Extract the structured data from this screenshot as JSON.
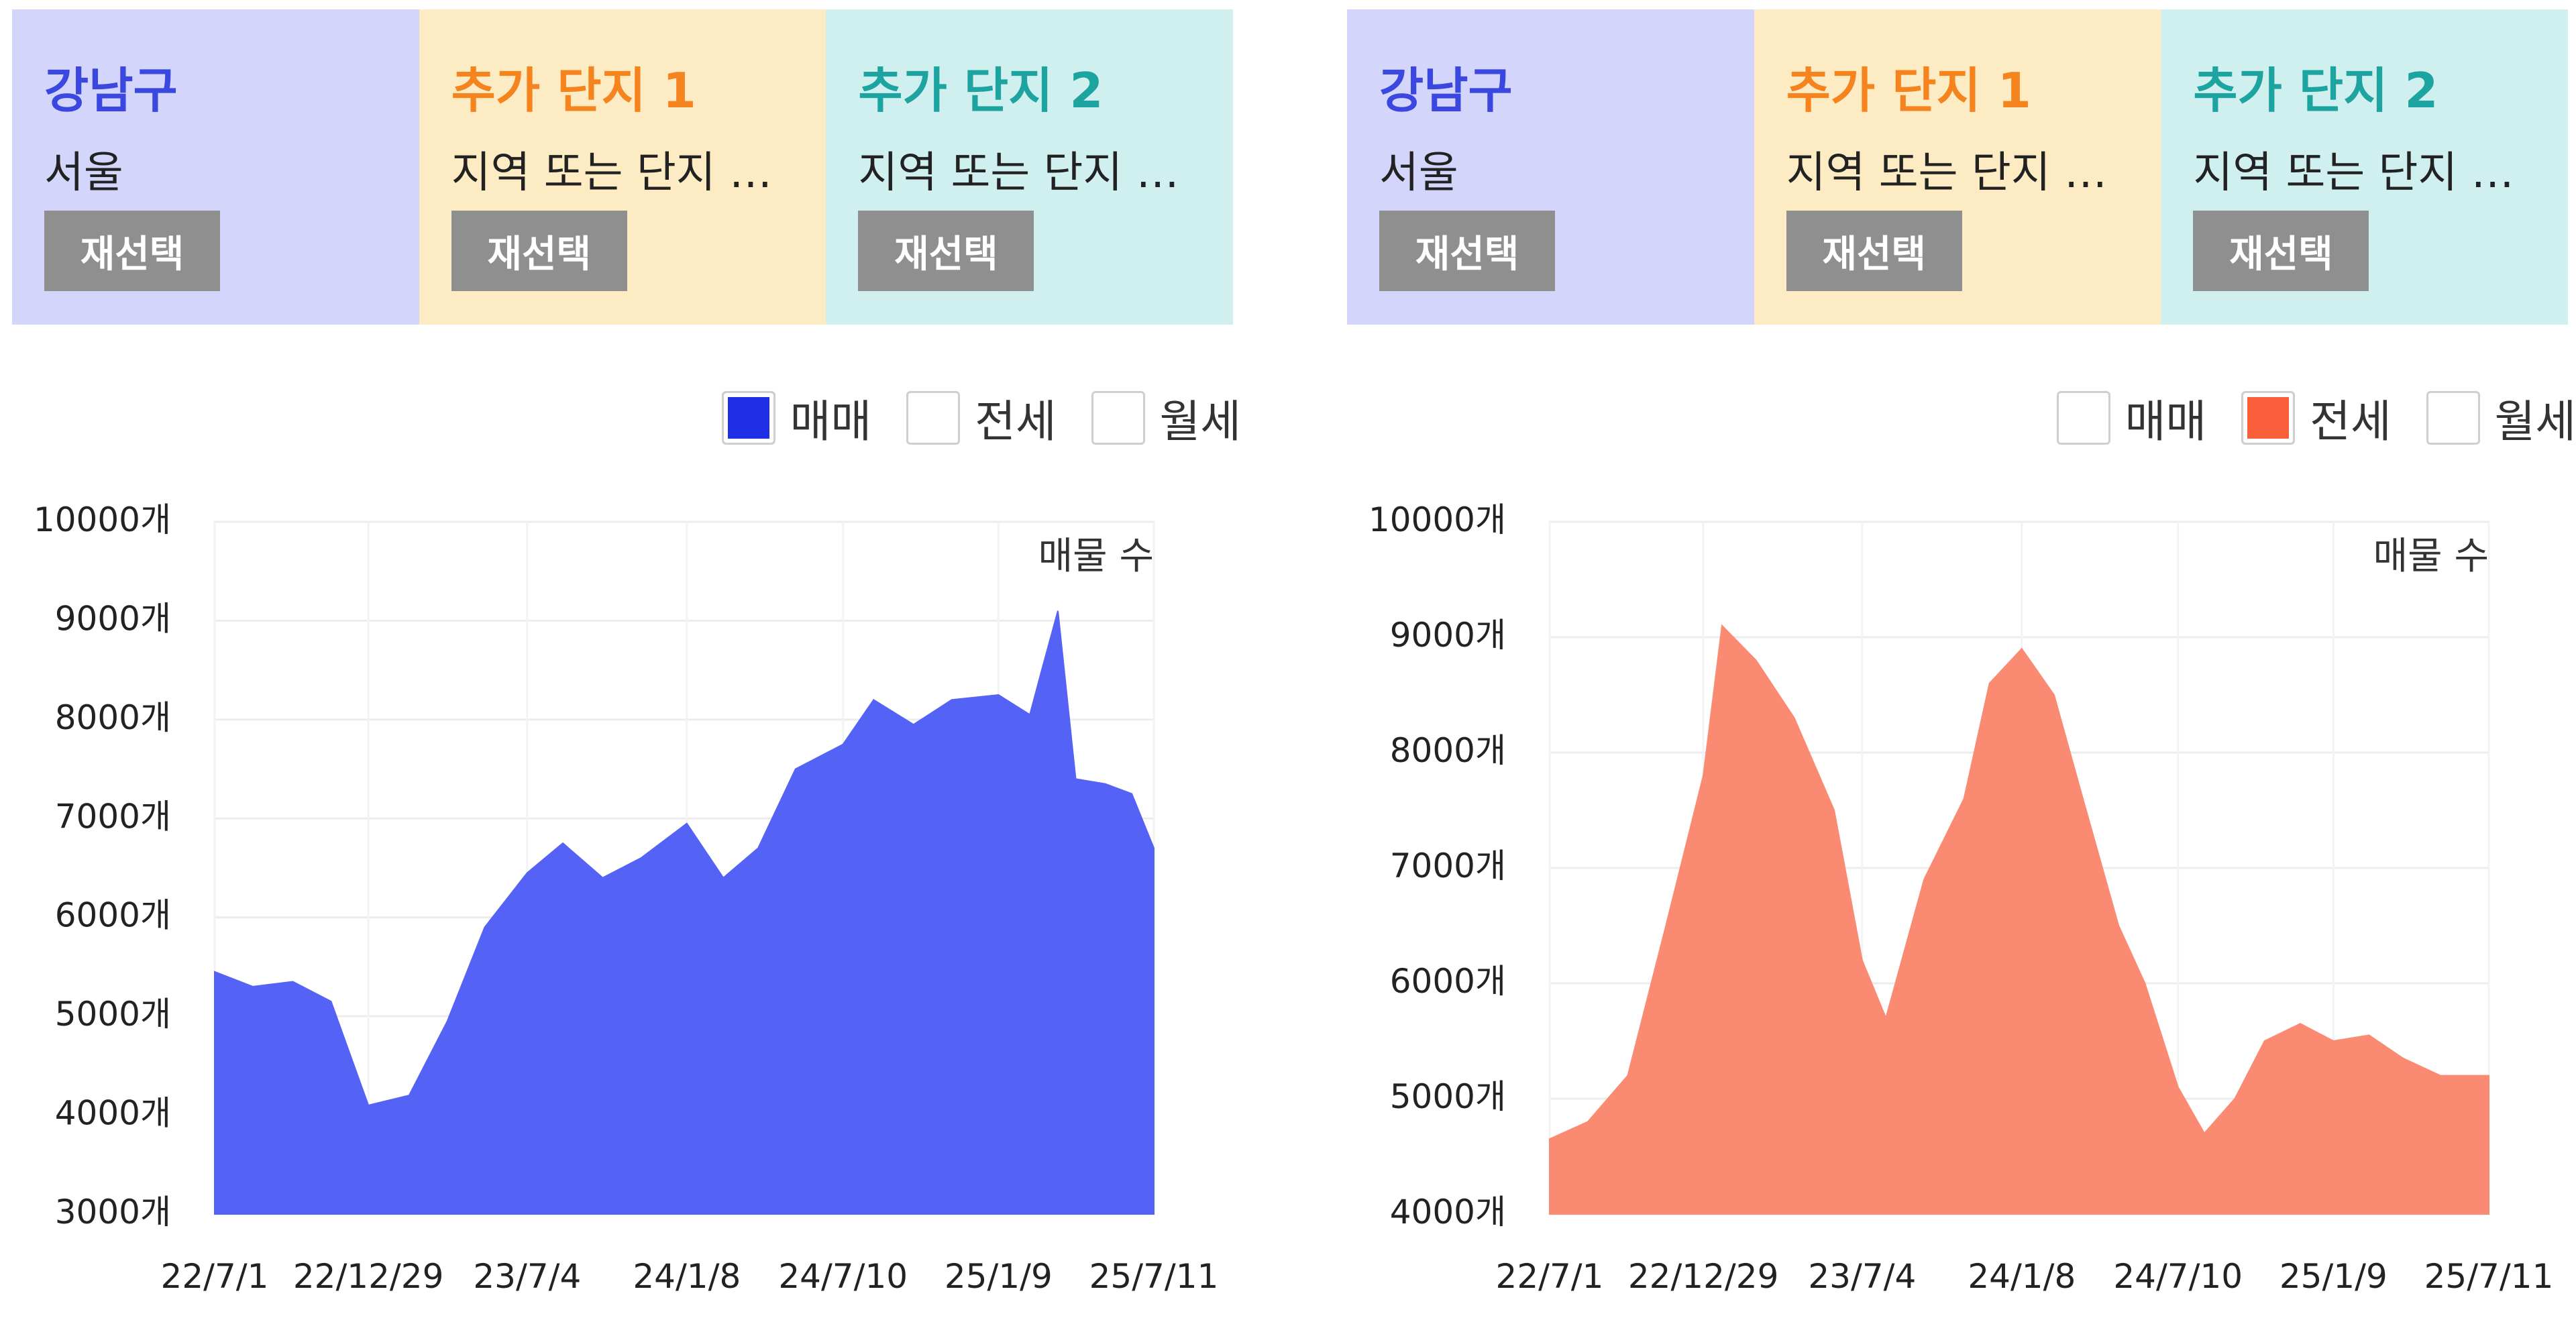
{
  "area_colors": [
    "#d4d5fa",
    "#fdecc3",
    "#d0efef"
  ],
  "area_text_colors": [
    "#3b48e0",
    "#f5841f",
    "#1ea4a0"
  ],
  "panels": [
    {
      "areas": [
        {
          "name": "강남구",
          "sub": "서울",
          "button": "재선택"
        },
        {
          "name": "추가 단지 1",
          "sub": "지역 또는 단지 …",
          "button": "재선택"
        },
        {
          "name": "추가 단지 2",
          "sub": "지역 또는 단지 …",
          "button": "재선택"
        }
      ],
      "legend": [
        {
          "label": "매매",
          "checked": true
        },
        {
          "label": "전세",
          "checked": false
        },
        {
          "label": "월세",
          "checked": false
        }
      ]
    },
    {
      "areas": [
        {
          "name": "강남구",
          "sub": "서울",
          "button": "재선택"
        },
        {
          "name": "추가 단지 1",
          "sub": "지역 또는 단지 …",
          "button": "재선택"
        },
        {
          "name": "추가 단지 2",
          "sub": "지역 또는 단지 …",
          "button": "재선택"
        }
      ],
      "legend": [
        {
          "label": "매매",
          "checked": false
        },
        {
          "label": "전세",
          "checked": true
        },
        {
          "label": "월세",
          "checked": false
        }
      ]
    }
  ],
  "chart_data": [
    {
      "type": "area",
      "series_label": "매물 수",
      "color": "#5562f6",
      "legend_color": "#1f2fe6",
      "ylim": [
        3000,
        10000
      ],
      "yticks": [
        3000,
        4000,
        5000,
        6000,
        7000,
        8000,
        9000,
        10000
      ],
      "ytick_suffix": "개",
      "xticks": [
        "22/7/1",
        "22/12/29",
        "23/7/4",
        "24/1/8",
        "24/7/10",
        "25/1/9",
        "25/7/11"
      ],
      "x": [
        "22/7/1",
        "22/8/15",
        "22/10/1",
        "22/11/15",
        "22/12/29",
        "23/2/15",
        "23/4/1",
        "23/5/15",
        "23/7/4",
        "23/8/15",
        "23/10/1",
        "23/11/15",
        "24/1/8",
        "24/2/20",
        "24/4/1",
        "24/5/15",
        "24/7/10",
        "24/8/15",
        "24/10/1",
        "24/11/15",
        "25/1/9",
        "25/2/15",
        "25/3/1",
        "25/3/20",
        "25/4/10",
        "25/5/15",
        "25/6/15",
        "25/7/11"
      ],
      "values": [
        5450,
        5300,
        5350,
        5150,
        4100,
        4200,
        4950,
        5900,
        6450,
        6750,
        6400,
        6600,
        6950,
        6400,
        6700,
        7500,
        7750,
        8200,
        7950,
        8200,
        8250,
        8050,
        8500,
        9100,
        7400,
        7350,
        7250,
        6700
      ]
    },
    {
      "type": "area",
      "series_label": "매물 수",
      "color": "#fb8a72",
      "legend_color": "#fa5f3b",
      "ylim": [
        4000,
        10000
      ],
      "yticks": [
        4000,
        5000,
        6000,
        7000,
        8000,
        9000,
        10000
      ],
      "ytick_suffix": "개",
      "xticks": [
        "22/7/1",
        "22/12/29",
        "23/7/4",
        "24/1/8",
        "24/7/10",
        "25/1/9",
        "25/7/11"
      ],
      "x": [
        "22/7/1",
        "22/8/15",
        "22/10/1",
        "22/11/15",
        "22/12/29",
        "23/1/20",
        "23/3/1",
        "23/4/15",
        "23/6/1",
        "23/7/4",
        "23/8/1",
        "23/9/15",
        "23/11/1",
        "23/12/1",
        "24/1/8",
        "24/2/15",
        "24/3/20",
        "24/5/1",
        "24/6/1",
        "24/7/10",
        "24/8/10",
        "24/9/15",
        "24/10/20",
        "24/12/1",
        "25/1/9",
        "25/2/20",
        "25/4/1",
        "25/5/15",
        "25/7/11"
      ],
      "values": [
        4650,
        4800,
        5200,
        6500,
        7800,
        9100,
        8800,
        8300,
        7500,
        6200,
        5700,
        6900,
        7600,
        8600,
        8900,
        8500,
        7600,
        6500,
        6000,
        5100,
        4700,
        5000,
        5500,
        5650,
        5500,
        5550,
        5350,
        5200,
        5200
      ]
    }
  ]
}
